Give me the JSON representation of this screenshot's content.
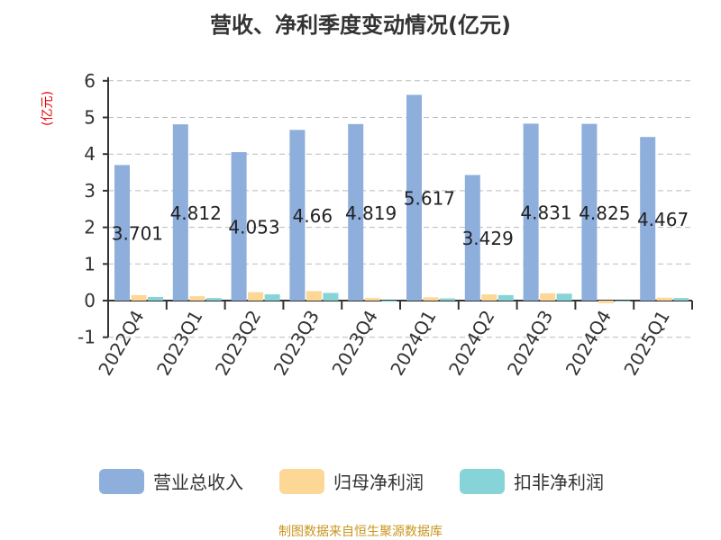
{
  "chart_data": {
    "type": "bar",
    "title": "营收、净利季度变动情况(亿元)",
    "ylabel": "(亿元)",
    "categories": [
      "2022Q4",
      "2023Q1",
      "2023Q2",
      "2023Q3",
      "2023Q4",
      "2024Q1",
      "2024Q2",
      "2024Q3",
      "2024Q4",
      "2025Q1"
    ],
    "ylim": [
      -1,
      6
    ],
    "yticks": [
      -1,
      0,
      1,
      2,
      3,
      4,
      5,
      6
    ],
    "grid": true,
    "legend_position": "bottom",
    "series": [
      {
        "name": "营业总收入",
        "color": "#8eaedc",
        "values": [
          3.701,
          4.812,
          4.053,
          4.66,
          4.819,
          5.617,
          3.429,
          4.831,
          4.825,
          4.467
        ],
        "labels": [
          "3.701",
          "4.812",
          "4.053",
          "4.66",
          "4.819",
          "5.617",
          "3.429",
          "4.831",
          "4.825",
          "4.467"
        ]
      },
      {
        "name": "归母净利润",
        "color": "#fdd796",
        "values": [
          0.15,
          0.12,
          0.23,
          0.26,
          0.07,
          0.09,
          0.17,
          0.2,
          -0.07,
          0.08
        ]
      },
      {
        "name": "扣非净利润",
        "color": "#86d4d8",
        "values": [
          0.1,
          0.07,
          0.17,
          0.21,
          -0.03,
          0.06,
          0.15,
          0.19,
          -0.02,
          0.07
        ]
      }
    ]
  },
  "source": "制图数据来自恒生聚源数据库"
}
